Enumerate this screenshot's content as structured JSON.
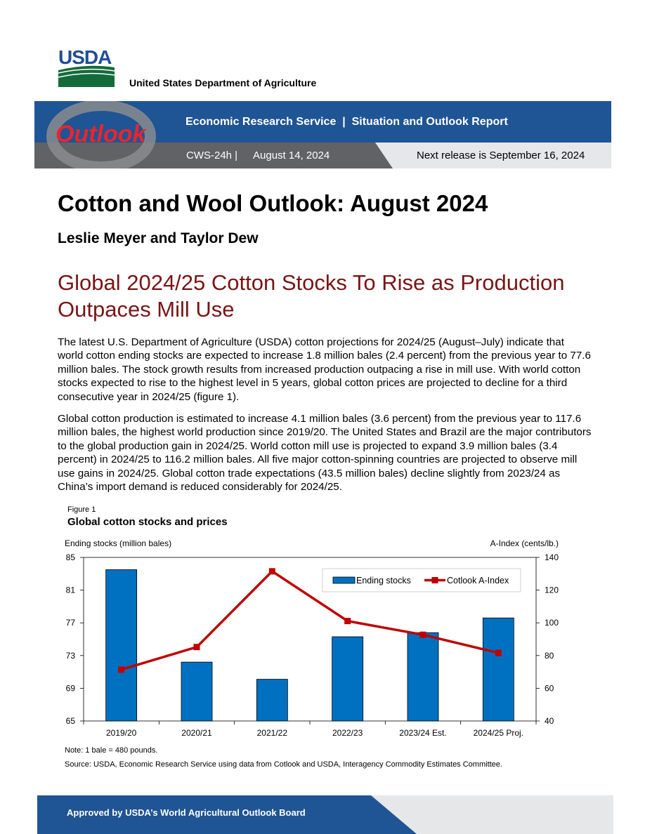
{
  "header": {
    "agency_logo_text": "USDA",
    "department_name": "United States Department of Agriculture",
    "outlook_logo_text": "Outlook",
    "service_title": "Economic Research Service  |  Situation and Outlook Report",
    "report_id": "CWS-24h |",
    "report_date": "August 14, 2024",
    "next_release": "Next release is September 16, 2024",
    "colors": {
      "banner_blue": "#1f5495",
      "banner_gray": "#606266",
      "banner_light": "#e6e7e8",
      "outlook_red": "#e8262b"
    }
  },
  "document": {
    "title": "Cotton and Wool Outlook: August 2024",
    "authors": "Leslie Meyer and Taylor Dew",
    "headline": "Global 2024/25 Cotton Stocks To Rise as Production Outpaces Mill Use",
    "paragraphs": [
      "The latest U.S. Department of Agriculture (USDA) cotton projections for 2024/25 (August–July) indicate that world cotton ending stocks are expected to increase 1.8 million bales (2.4 percent) from the previous year to 77.6 million bales. The stock growth results from increased production outpacing a rise in mill use. With world cotton stocks expected to rise to the highest level in 5 years, global cotton prices are projected to decline for a third consecutive year in 2024/25 (figure 1).",
      "Global cotton production is estimated to increase 4.1 million bales (3.6 percent) from the previous year to 117.6 million bales, the highest world production since 2019/20. The United States and Brazil are the major contributors to the global production gain in 2024/25. World cotton mill use is projected to expand 3.9 million bales (3.4 percent) in 2024/25 to 116.2 million bales. All five major cotton-spinning countries are projected to observe mill use gains in 2024/25. Global cotton trade expectations (43.5 million bales) decline slightly from 2023/24 as China’s import demand is reduced considerably for 2024/25."
    ]
  },
  "figure": {
    "label": "Figure 1",
    "title": "Global cotton stocks and prices",
    "note": "Note: 1 bale = 480 pounds.",
    "source": "Source: USDA, Economic Research Service using data from Cotlook and USDA, Interagency Commodity Estimates Committee."
  },
  "chart_data": {
    "type": "bar",
    "categories": [
      "2019/20",
      "2020/21",
      "2021/22",
      "2022/23",
      "2023/24 Est.",
      "2024/25 Proj."
    ],
    "ylabel_left": "Ending stocks (million bales)",
    "ylabel_right": "A-Index (cents/lb.)",
    "ylim_left": [
      65,
      85
    ],
    "yticks_left": [
      65,
      69,
      73,
      77,
      81,
      85
    ],
    "ylim_right": [
      40,
      140
    ],
    "yticks_right": [
      40,
      60,
      80,
      100,
      120,
      140
    ],
    "legend_position": "top-right",
    "grid": false,
    "series": [
      {
        "name": "Ending stocks",
        "type": "bar",
        "axis": "left",
        "color": "#0070c0",
        "values": [
          83.5,
          72.2,
          70.1,
          75.3,
          75.8,
          77.6
        ]
      },
      {
        "name": "Cotlook A-Index",
        "type": "line",
        "axis": "right",
        "color": "#c00000",
        "values": [
          71.4,
          85.2,
          131.5,
          101.1,
          92.7,
          81.6
        ]
      }
    ]
  },
  "footer": {
    "approval": "Approved by USDA’s World Agricultural Outlook Board",
    "colors": {
      "blue": "#1f5495"
    }
  }
}
